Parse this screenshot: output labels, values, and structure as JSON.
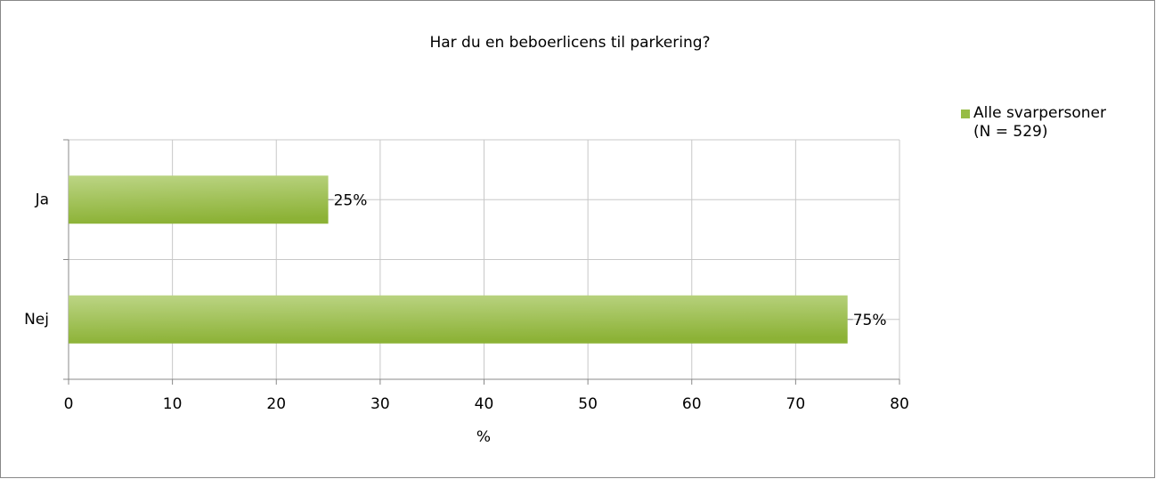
{
  "chart_data": {
    "type": "bar",
    "orientation": "horizontal",
    "title": "Har du en beboerlicens til parkering?",
    "x_label": "%",
    "categories": [
      "Ja",
      "Nej"
    ],
    "series": [
      {
        "name": "Alle svarpersoner (N = 529)",
        "color": "#97bc45",
        "values": [
          25,
          75
        ],
        "value_labels": [
          "25%",
          "75%"
        ]
      }
    ],
    "xlim": [
      0,
      80
    ],
    "xticks": [
      0,
      10,
      20,
      30,
      40,
      50,
      60,
      70,
      80
    ],
    "grid": true,
    "legend": "right"
  }
}
